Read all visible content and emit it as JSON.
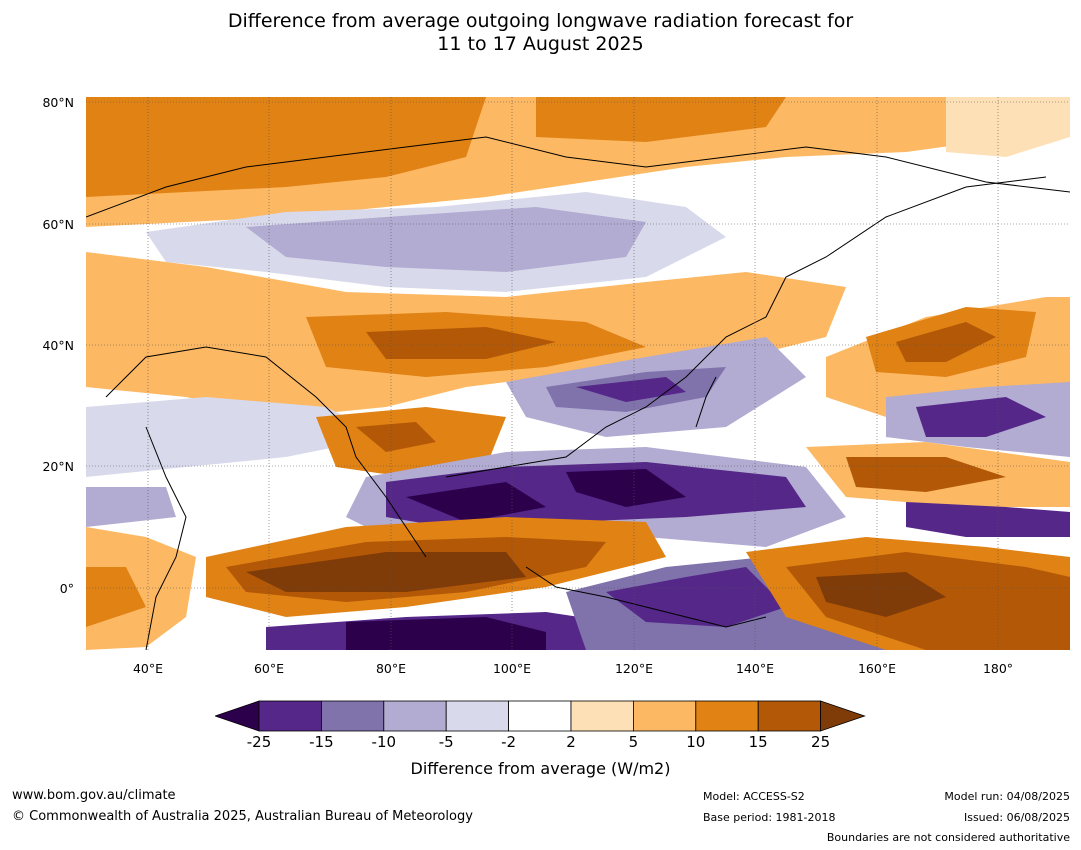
{
  "title_line1": "Difference from average outgoing longwave radiation forecast for",
  "title_line2": "11 to 17 August 2025",
  "lat_labels": [
    "80°N",
    "60°N",
    "40°N",
    "20°N",
    "0°"
  ],
  "lon_labels": [
    "40°E",
    "60°E",
    "80°E",
    "100°E",
    "120°E",
    "140°E",
    "160°E",
    "180°"
  ],
  "colorbar": {
    "ticks": [
      "-25",
      "-15",
      "-10",
      "-5",
      "-2",
      "2",
      "5",
      "10",
      "15",
      "25"
    ],
    "colors": [
      "#2d004b",
      "#542788",
      "#8073ac",
      "#b2abd2",
      "#d8daeb",
      "#ffffff",
      "#fee0b6",
      "#fdb863",
      "#e08214",
      "#b35806",
      "#7f3b08"
    ],
    "label": "Difference from average (W/m2)"
  },
  "footer": {
    "website": "www.bom.gov.au/climate",
    "copyright": "© Commonwealth of Australia 2025, Australian Bureau of Meteorology",
    "model": "Model: ACCESS-S2",
    "base_period": "Base period: 1981-2018",
    "model_run": "Model run: 04/08/2025",
    "issued": "Issued: 06/08/2025",
    "disclaimer": "Boundaries are not considered authoritative"
  }
}
